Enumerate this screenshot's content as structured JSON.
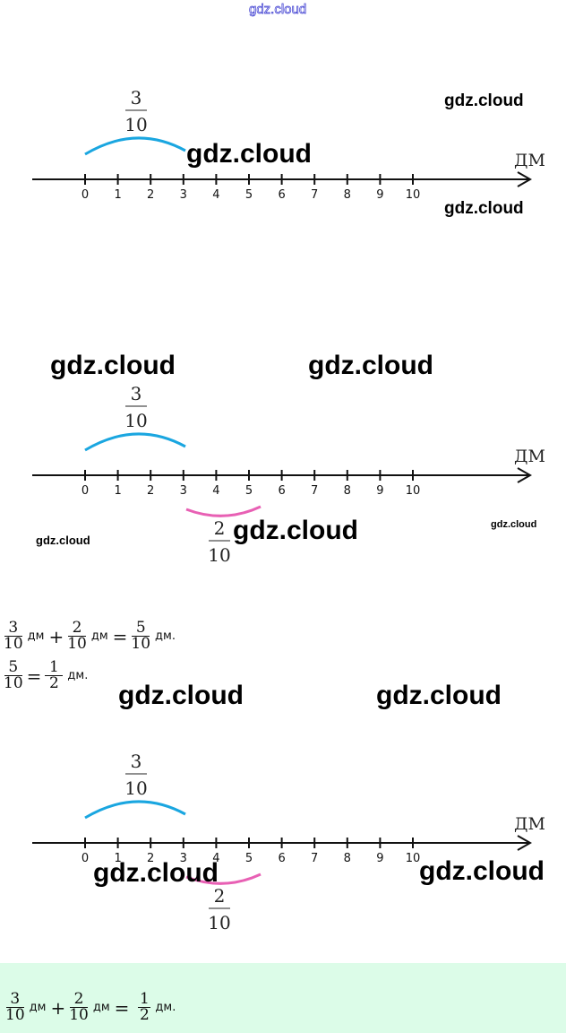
{
  "watermark_text": "gdz.cloud",
  "number_line": {
    "labels": [
      "0",
      "1",
      "2",
      "3",
      "4",
      "5",
      "6",
      "7",
      "8",
      "9",
      "10"
    ],
    "unit": "ДМ",
    "colors": {
      "blue_arc": "#1aa6e0",
      "pink_arc": "#e860b4"
    }
  },
  "diagrams": [
    {
      "blue_fraction": {
        "num": "3",
        "den": "10"
      }
    },
    {
      "blue_fraction": {
        "num": "3",
        "den": "10"
      },
      "pink_fraction": {
        "num": "2",
        "den": "10"
      }
    },
    {
      "blue_fraction": {
        "num": "3",
        "den": "10"
      },
      "pink_fraction": {
        "num": "2",
        "den": "10"
      }
    }
  ],
  "equations": {
    "line1": {
      "a_num": "3",
      "a_den": "10",
      "unit1": "дм",
      "plus": "+",
      "b_num": "2",
      "b_den": "10",
      "unit2": "дм",
      "eq": "=",
      "c_num": "5",
      "c_den": "10",
      "unit3": "дм."
    },
    "line2": {
      "a_num": "5",
      "a_den": "10",
      "eq": "=",
      "b_num": "1",
      "b_den": "2",
      "unit": "дм."
    },
    "answer": {
      "a_num": "3",
      "a_den": "10",
      "unit1": "дм",
      "plus": "+",
      "b_num": "2",
      "b_den": "10",
      "unit2": "дм",
      "eq": "=",
      "c_num": "1",
      "c_den": "2",
      "unit3": "дм."
    },
    "answer_bg": "#dcfce8"
  }
}
